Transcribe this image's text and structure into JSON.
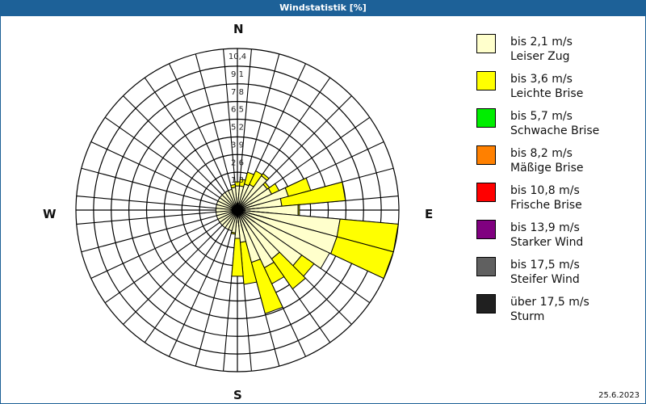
{
  "window": {
    "title": "Windstatistik [%]"
  },
  "compass": {
    "n": "N",
    "e": "E",
    "s": "S",
    "w": "W"
  },
  "footer": {
    "date": "25.6.2023"
  },
  "legend": {
    "items": [
      {
        "speed": "bis 2,1 m/s",
        "name": "Leiser Zug",
        "color": "#ffffcc"
      },
      {
        "speed": "bis 3,6 m/s",
        "name": "Leichte Brise",
        "color": "#ffff00"
      },
      {
        "speed": "bis 5,7 m/s",
        "name": "Schwache Brise",
        "color": "#00ee00"
      },
      {
        "speed": "bis 8,2 m/s",
        "name": "Mäßige Brise",
        "color": "#ff8000"
      },
      {
        "speed": "bis 10,8 m/s",
        "name": "Frische Brise",
        "color": "#ff0000"
      },
      {
        "speed": "bis 13,9 m/s",
        "name": "Starker Wind",
        "color": "#800080"
      },
      {
        "speed": "bis 17,5 m/s",
        "name": "Steifer Wind",
        "color": "#606060"
      },
      {
        "speed": "über 17,5 m/s",
        "name": "Sturm",
        "color": "#202020"
      }
    ]
  },
  "chart_data": {
    "type": "wind-rose",
    "title": "Windstatistik [%]",
    "unit": "%",
    "sector_width_deg": 10,
    "rings": [
      "1,3",
      "2,6",
      "3,9",
      "5,2",
      "6,5",
      "7,8",
      "9,1",
      "10,4"
    ],
    "rmax": 10.4,
    "legend_position": "right",
    "series": [
      {
        "name": "bis 2,1 m/s Leiser Zug",
        "color": "#ffffcc"
      },
      {
        "name": "bis 3,6 m/s Leichte Brise",
        "color": "#ffff00"
      },
      {
        "name": "bis 5,7 m/s Schwache Brise",
        "color": "#00ee00"
      },
      {
        "name": "bis 8,2 m/s Mäßige Brise",
        "color": "#ff8000"
      },
      {
        "name": "bis 10,8 m/s Frische Brise",
        "color": "#ff0000"
      },
      {
        "name": "bis 13,9 m/s Starker Wind",
        "color": "#800080"
      },
      {
        "name": "bis 17,5 m/s Steifer Wind",
        "color": "#606060"
      },
      {
        "name": "über 17,5 m/s Sturm",
        "color": "#202020"
      }
    ],
    "sectors": [
      {
        "dir": 0,
        "values": [
          0.3,
          0.3
        ]
      },
      {
        "dir": 10,
        "values": [
          0.3,
          0.5
        ]
      },
      {
        "dir": 20,
        "values": [
          0.5,
          0.9
        ]
      },
      {
        "dir": 30,
        "values": [
          0.6,
          1.1
        ]
      },
      {
        "dir": 40,
        "values": [
          1.6,
          0.2
        ]
      },
      {
        "dir": 50,
        "values": [
          1.2,
          0.2
        ]
      },
      {
        "dir": 60,
        "values": [
          1.3,
          0.6
        ]
      },
      {
        "dir": 70,
        "values": [
          2.4,
          1.7
        ]
      },
      {
        "dir": 80,
        "values": [
          1.8,
          4.7
        ]
      },
      {
        "dir": 90,
        "values": [
          3.0,
          0.1
        ]
      },
      {
        "dir": 100,
        "values": [
          6.1,
          4.3
        ]
      },
      {
        "dir": 110,
        "values": [
          6.1,
          4.3
        ]
      },
      {
        "dir": 120,
        "values": [
          6.0,
          0.0
        ]
      },
      {
        "dir": 130,
        "values": [
          4.3,
          1.1
        ]
      },
      {
        "dir": 140,
        "values": [
          2.9,
          2.7
        ]
      },
      {
        "dir": 150,
        "values": [
          3.2,
          1.3
        ]
      },
      {
        "dir": 160,
        "values": [
          2.5,
          3.9
        ]
      },
      {
        "dir": 170,
        "values": [
          0.9,
          3.1
        ]
      },
      {
        "dir": 180,
        "values": [
          0.6,
          2.8
        ]
      },
      {
        "dir": 190,
        "values": [
          0.2,
          0.1
        ]
      },
      {
        "dir": 200,
        "values": [
          0.1,
          0.0
        ]
      },
      {
        "dir": 210,
        "values": [
          0.1,
          0.0
        ]
      },
      {
        "dir": 220,
        "values": [
          0.1,
          0.0
        ]
      },
      {
        "dir": 230,
        "values": [
          0.1,
          0.0
        ]
      },
      {
        "dir": 240,
        "values": [
          0.1,
          0.0
        ]
      },
      {
        "dir": 250,
        "values": [
          0.1,
          0.0
        ]
      },
      {
        "dir": 260,
        "values": [
          0.1,
          0.0
        ]
      },
      {
        "dir": 270,
        "values": [
          0.1,
          0.0
        ]
      },
      {
        "dir": 280,
        "values": [
          0.1,
          0.0
        ]
      },
      {
        "dir": 290,
        "values": [
          0.1,
          0.0
        ]
      },
      {
        "dir": 300,
        "values": [
          0.1,
          0.0
        ]
      },
      {
        "dir": 310,
        "values": [
          0.1,
          0.0
        ]
      },
      {
        "dir": 320,
        "values": [
          0.1,
          0.0
        ]
      },
      {
        "dir": 330,
        "values": [
          0.1,
          0.0
        ]
      },
      {
        "dir": 340,
        "values": [
          0.1,
          0.0
        ]
      },
      {
        "dir": 350,
        "values": [
          0.2,
          0.2
        ]
      }
    ]
  }
}
